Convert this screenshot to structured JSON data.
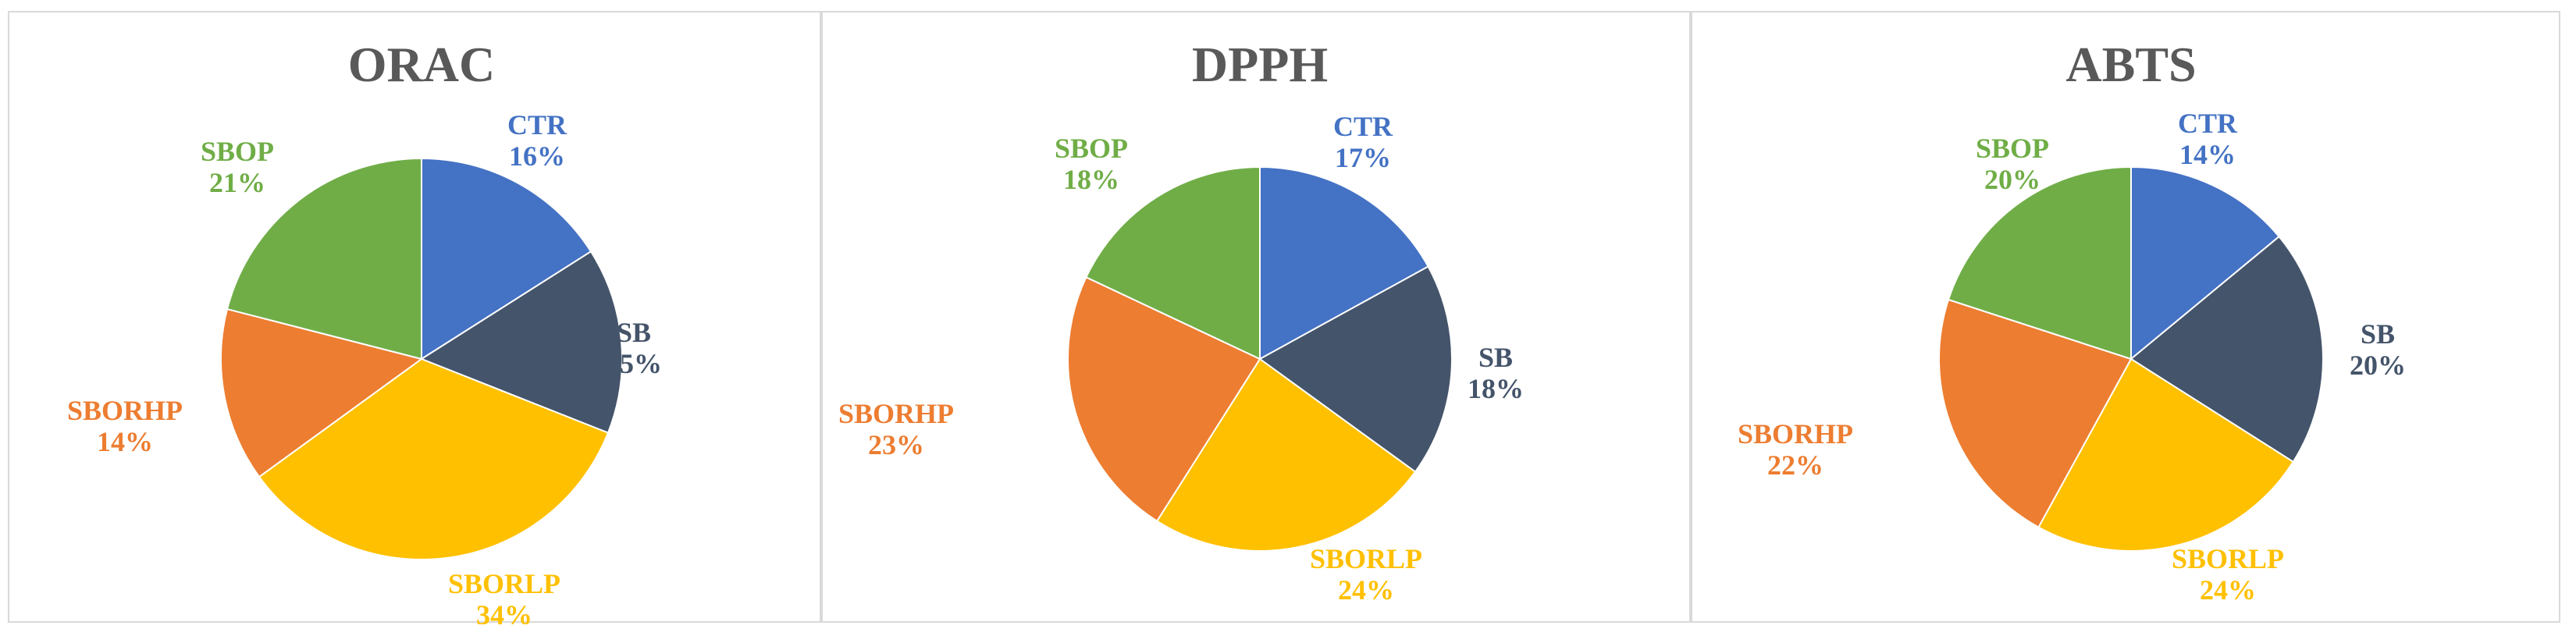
{
  "colors": {
    "CTR": "#4472C4",
    "SB": "#44546A",
    "SBORLP": "#FFC000",
    "SBORHP": "#ED7D31",
    "SBOP": "#70AD47"
  },
  "chart_data": [
    {
      "type": "pie",
      "title": "ORAC",
      "categories": [
        "CTR",
        "SB",
        "SBORLP",
        "SBORHP",
        "SBOP"
      ],
      "values": [
        16,
        15,
        34,
        14,
        21
      ],
      "labels": [
        "16%",
        "15%",
        "34%",
        "14%",
        "21%"
      ]
    },
    {
      "type": "pie",
      "title": "DPPH",
      "categories": [
        "CTR",
        "SB",
        "SBORLP",
        "SBORHP",
        "SBOP"
      ],
      "values": [
        17,
        18,
        24,
        23,
        18
      ],
      "labels": [
        "17%",
        "18%",
        "24%",
        "23%",
        "18%"
      ]
    },
    {
      "type": "pie",
      "title": "ABTS",
      "categories": [
        "CTR",
        "SB",
        "SBORLP",
        "SBORHP",
        "SBOP"
      ],
      "values": [
        14,
        20,
        24,
        22,
        20
      ],
      "labels": [
        "14%",
        "20%",
        "24%",
        "22%",
        "20%"
      ]
    }
  ]
}
